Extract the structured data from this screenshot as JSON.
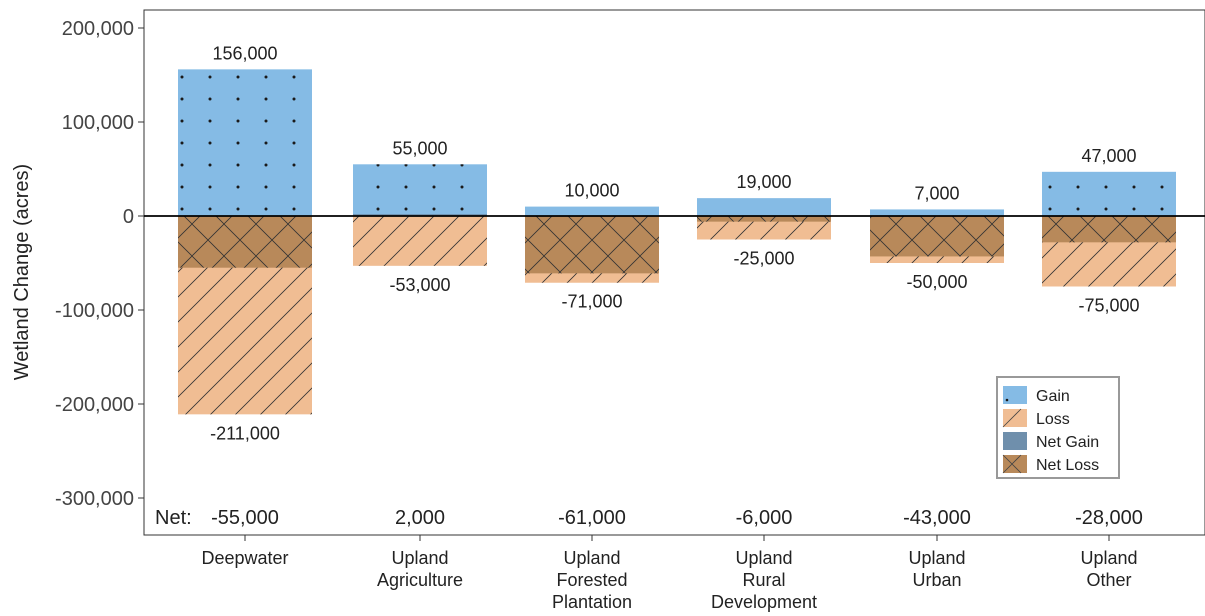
{
  "chart_data": {
    "type": "bar",
    "ylabel": "Wetland Change (acres)",
    "ylim": [
      -330000,
      215000
    ],
    "yticks": [
      200000,
      100000,
      0,
      -100000,
      -200000,
      -300000
    ],
    "ytick_labels": [
      "200,000",
      "100,000",
      "0",
      "-100,000",
      "-200,000",
      "-300,000"
    ],
    "categories": [
      [
        "Deepwater"
      ],
      [
        "Upland",
        "Agriculture"
      ],
      [
        "Upland",
        "Forested",
        "Plantation"
      ],
      [
        "Upland",
        "Rural",
        "Development"
      ],
      [
        "Upland",
        "Urban"
      ],
      [
        "Upland",
        "Other"
      ]
    ],
    "gain": [
      156000,
      55000,
      10000,
      19000,
      7000,
      47000
    ],
    "loss": [
      -211000,
      -53000,
      -71000,
      -25000,
      -50000,
      -75000
    ],
    "net": [
      -55000,
      2000,
      -61000,
      -6000,
      -43000,
      -28000
    ],
    "gain_labels": [
      "156,000",
      "55,000",
      "10,000",
      "19,000",
      "7,000",
      "47,000"
    ],
    "loss_labels": [
      "-211,000",
      "-53,000",
      "-71,000",
      "-25,000",
      "-50,000",
      "-75,000"
    ],
    "net_labels": [
      "-55,000",
      "2,000",
      "-61,000",
      "-6,000",
      "-43,000",
      "-28,000"
    ],
    "net_prefix": "Net:",
    "legend": {
      "position": "bottom-right",
      "items": [
        "Gain",
        "Loss",
        "Net Gain",
        "Net Loss"
      ]
    },
    "colors": {
      "gain": "#85bbe5",
      "loss": "#f0bd93",
      "net_gain": "#6f8fac",
      "net_loss": "#b8895a"
    },
    "grid": false
  }
}
